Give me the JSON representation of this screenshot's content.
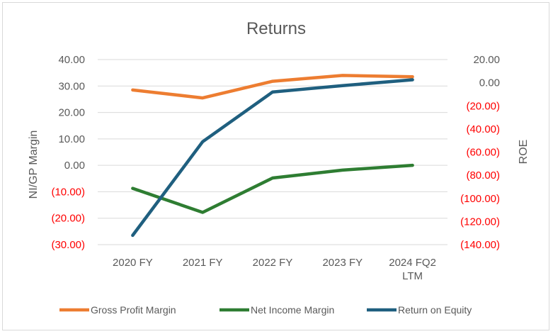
{
  "chart_data": {
    "type": "line",
    "title": "Returns",
    "xlabel": "",
    "ylabel": "NI/GP Margin",
    "y2label": "ROE",
    "categories": [
      [
        "2020 FY"
      ],
      [
        "2021 FY"
      ],
      [
        "2022 FY"
      ],
      [
        "2023 FY"
      ],
      [
        "2024 FQ2",
        "LTM"
      ]
    ],
    "ylim": [
      -30,
      40
    ],
    "y2lim": [
      -140,
      20
    ],
    "y_ticks": [
      {
        "value": 40,
        "label": "40.00",
        "negative": false
      },
      {
        "value": 30,
        "label": "30.00",
        "negative": false
      },
      {
        "value": 20,
        "label": "20.00",
        "negative": false
      },
      {
        "value": 10,
        "label": "10.00",
        "negative": false
      },
      {
        "value": 0,
        "label": "0.00",
        "negative": false
      },
      {
        "value": -10,
        "label": "(10.00)",
        "negative": true
      },
      {
        "value": -20,
        "label": "(20.00)",
        "negative": true
      },
      {
        "value": -30,
        "label": "(30.00)",
        "negative": true
      }
    ],
    "y2_ticks": [
      {
        "value": 20,
        "label": "20.00",
        "negative": false
      },
      {
        "value": 0,
        "label": "0.00",
        "negative": false
      },
      {
        "value": -20,
        "label": "(20.00)",
        "negative": true
      },
      {
        "value": -40,
        "label": "(40.00)",
        "negative": true
      },
      {
        "value": -60,
        "label": "(60.00)",
        "negative": true
      },
      {
        "value": -80,
        "label": "(80.00)",
        "negative": true
      },
      {
        "value": -100,
        "label": "(100.00)",
        "negative": true
      },
      {
        "value": -120,
        "label": "(120.00)",
        "negative": true
      },
      {
        "value": -140,
        "label": "(140.00)",
        "negative": true
      }
    ],
    "grid": true,
    "legend": "bottom",
    "series": [
      {
        "name": "Gross Profit Margin",
        "axis": "left",
        "color": "#ed7d31",
        "values": [
          28.5,
          25.5,
          31.8,
          34.0,
          33.5
        ]
      },
      {
        "name": "Net Income Margin",
        "axis": "left",
        "color": "#2e7d32",
        "values": [
          -8.7,
          -17.8,
          -4.8,
          -1.8,
          0.0
        ]
      },
      {
        "name": "Return on Equity",
        "axis": "right",
        "color": "#1f5f7f",
        "values": [
          -132,
          -51,
          -8,
          -2.5,
          2.5
        ]
      }
    ],
    "colors": {
      "negative_tick": "#ff0000",
      "positive_tick": "#595959",
      "grid": "#d9d9d9"
    }
  }
}
